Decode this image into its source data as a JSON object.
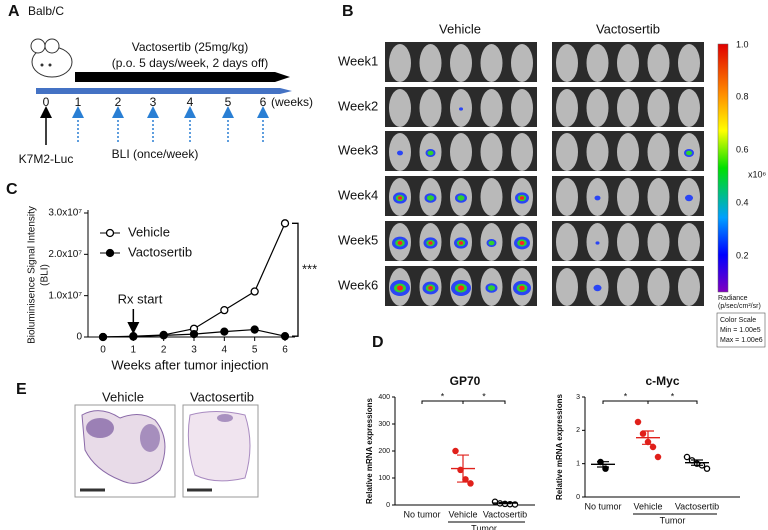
{
  "figure": {
    "panel_labels": [
      "A",
      "B",
      "C",
      "D",
      "E"
    ],
    "A": {
      "mouse": "Balb/C",
      "drug": "Vactosertib (25mg/kg)",
      "schedule": "(p.o. 5 days/week, 2 days off)",
      "weeks": [
        0,
        1,
        2,
        3,
        4,
        5,
        6
      ],
      "weeks_unit": "(weeks)",
      "cells": "K7M2-Luc",
      "imaging": "BLI (once/week)"
    },
    "B": {
      "groups": [
        "Vehicle",
        "Vactosertib"
      ],
      "rows": [
        "Week1",
        "Week2",
        "Week3",
        "Week4",
        "Week5",
        "Week6"
      ],
      "colorbar_ticks": [
        "1.0",
        "0.8",
        "0.6",
        "0.4",
        "0.2"
      ],
      "colorbar_exponent": "x10⁶",
      "colorbar_title": [
        "Radiance",
        "(p/sec/cm²/sr)"
      ],
      "color_scale": [
        "Color Scale",
        "Min = 1.00e5",
        "Max = 1.00e6"
      ]
    },
    "E": {
      "groups": [
        "Vehicle",
        "Vactosertib"
      ]
    }
  },
  "chart_data": [
    {
      "type": "line",
      "ylabel": "Bioluminisence Signal Intensity",
      "ylabel_sub": "(BLI)",
      "xlabel": "Weeks after tumor injection",
      "x": [
        0,
        1,
        2,
        3,
        4,
        5,
        6
      ],
      "series": [
        {
          "name": "Vehicle",
          "color": "#000000",
          "marker": "open",
          "values": [
            0,
            200000,
            500000,
            2000000,
            6500000,
            11000000,
            27500000
          ]
        },
        {
          "name": "Vactosertib",
          "color": "#000000",
          "marker": "filled",
          "values": [
            0,
            100000,
            400000,
            700000,
            1300000,
            1800000,
            200000
          ]
        }
      ],
      "xlim": [
        0,
        6
      ],
      "ylim": [
        0,
        30000000
      ],
      "xticks": [
        0,
        1,
        2,
        3,
        4,
        5,
        6
      ],
      "yticks": [
        0,
        {
          "value": 10000000,
          "label": "1.0x10⁷"
        },
        {
          "value": 20000000,
          "label": "2.0x10⁷"
        },
        {
          "value": 30000000,
          "label": "3.0x10⁷"
        }
      ],
      "annotation": {
        "label": "Rx start",
        "x": 1
      },
      "significance": "***"
    },
    {
      "type": "dot",
      "title": "GP70",
      "ylabel": "Relative mRNA expressions",
      "categories": [
        "No tumor",
        "Vehicle",
        "Vactosertib"
      ],
      "group_label": "Tumor",
      "colors": [
        "#000000",
        "#e0201b",
        "#000000"
      ],
      "markers": [
        "filled",
        "filled",
        "open"
      ],
      "points": [
        [],
        [
          200,
          130,
          95,
          80
        ],
        [
          12,
          6,
          4,
          3,
          2
        ]
      ],
      "means": [
        null,
        135,
        7
      ],
      "errors": [
        null,
        50,
        2
      ],
      "ylim": [
        0,
        400
      ],
      "yticks": [
        0,
        100,
        200,
        300,
        400
      ],
      "significance": [
        "*",
        "*"
      ]
    },
    {
      "type": "dot",
      "title": "c-Myc",
      "ylabel": "Relative mRNA expressions",
      "categories": [
        "No tumor",
        "Vehicle",
        "Vactosertib"
      ],
      "group_label": "Tumor",
      "colors": [
        "#000000",
        "#e0201b",
        "#000000"
      ],
      "markers": [
        "filled",
        "filled",
        "open"
      ],
      "points": [
        [
          1.05,
          0.85
        ],
        [
          2.25,
          1.9,
          1.65,
          1.5,
          1.2
        ],
        [
          1.2,
          1.1,
          1.0,
          0.95,
          0.85
        ]
      ],
      "means": [
        0.98,
        1.78,
        1.03
      ],
      "errors": [
        0.08,
        0.2,
        0.08
      ],
      "ylim": [
        0,
        3
      ],
      "yticks": [
        0,
        1,
        2,
        3
      ],
      "significance": [
        "*",
        "*"
      ]
    }
  ]
}
